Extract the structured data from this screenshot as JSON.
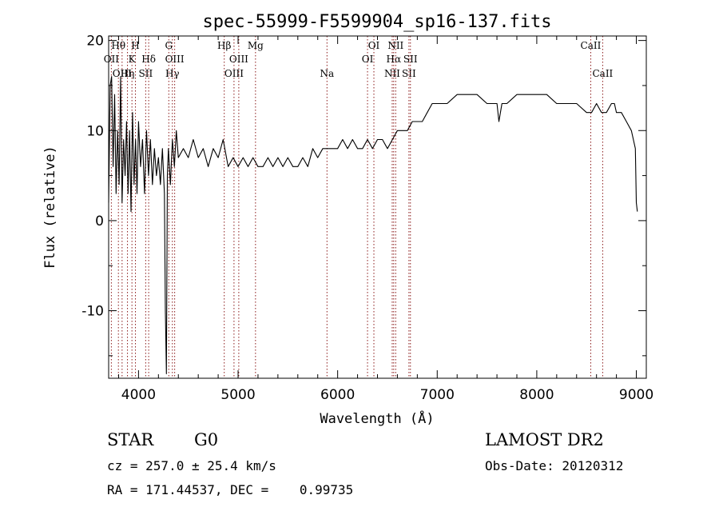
{
  "chart_data": {
    "type": "line",
    "title": "spec-55999-F5599904_sp16-137.fits",
    "xlabel": "Wavelength (Å)",
    "ylabel": "Flux (relative)",
    "xlim": [
      3700,
      9100
    ],
    "ylim": [
      -17.5,
      20.5
    ],
    "xticks": [
      4000,
      5000,
      6000,
      7000,
      8000,
      9000
    ],
    "yticks": [
      -10,
      0,
      10,
      20
    ],
    "grid": false,
    "legend": "none",
    "line_color": "#000000",
    "marker_color": "#8b1a1a",
    "series": [
      {
        "x": [
          3700,
          3715,
          3730,
          3745,
          3760,
          3775,
          3790,
          3805,
          3820,
          3835,
          3850,
          3865,
          3880,
          3895,
          3910,
          3925,
          3940,
          3955,
          3970,
          3985,
          4000,
          4020,
          4040,
          4060,
          4080,
          4100,
          4120,
          4140,
          4160,
          4180,
          4200,
          4220,
          4240,
          4260,
          4270,
          4280,
          4290,
          4300,
          4320,
          4340,
          4360,
          4380,
          4400,
          4450,
          4500,
          4550,
          4600,
          4650,
          4700,
          4750,
          4800,
          4850,
          4900,
          4950,
          5000,
          5050,
          5100,
          5150,
          5200,
          5250,
          5300,
          5350,
          5400,
          5450,
          5500,
          5550,
          5600,
          5650,
          5700,
          5750,
          5800,
          5850,
          5900,
          5950,
          6000,
          6050,
          6100,
          6150,
          6200,
          6250,
          6300,
          6350,
          6400,
          6450,
          6500,
          6550,
          6600,
          6650,
          6700,
          6750,
          6800,
          6850,
          6900,
          6950,
          7000,
          7100,
          7200,
          7300,
          7400,
          7500,
          7550,
          7600,
          7620,
          7650,
          7700,
          7800,
          7900,
          8000,
          8100,
          8200,
          8300,
          8400,
          8500,
          8550,
          8600,
          8650,
          8700,
          8750,
          8780,
          8800,
          8850,
          8900,
          8950,
          8990,
          9000,
          9010
        ],
        "y": [
          2,
          15,
          16,
          6,
          14,
          3,
          10,
          4,
          16,
          2,
          9,
          5,
          11,
          3,
          10,
          1,
          12,
          4,
          9,
          3,
          11,
          6,
          9,
          3,
          10,
          5,
          9,
          4,
          8,
          5,
          7,
          4,
          8,
          3,
          -10,
          -17,
          5,
          8,
          4,
          9,
          6,
          10,
          7,
          8,
          7,
          9,
          7,
          8,
          6,
          8,
          7,
          9,
          6,
          7,
          6,
          7,
          6,
          7,
          6,
          6,
          7,
          6,
          7,
          6,
          7,
          6,
          6,
          7,
          6,
          8,
          7,
          8,
          8,
          8,
          8,
          9,
          8,
          9,
          8,
          8,
          9,
          8,
          9,
          9,
          8,
          9,
          10,
          10,
          10,
          11,
          11,
          11,
          12,
          13,
          13,
          13,
          14,
          14,
          14,
          13,
          13,
          13,
          11,
          13,
          13,
          14,
          14,
          14,
          14,
          13,
          13,
          13,
          12,
          12,
          13,
          12,
          12,
          13,
          13,
          12,
          12,
          11,
          10,
          8,
          2,
          1
        ]
      }
    ],
    "line_markers": [
      {
        "wavelength": 3727,
        "labels": [
          "OII"
        ],
        "levels": [
          2
        ]
      },
      {
        "wavelength": 3798,
        "labels": [
          "Hθ"
        ],
        "levels": [
          1
        ]
      },
      {
        "wavelength": 3835,
        "labels": [
          "OIII"
        ],
        "levels": [
          3
        ]
      },
      {
        "wavelength": 3889,
        "labels": [
          "Hη"
        ],
        "levels": [
          3
        ]
      },
      {
        "wavelength": 3934,
        "labels": [
          "K"
        ],
        "levels": [
          2
        ]
      },
      {
        "wavelength": 3969,
        "labels": [
          "H"
        ],
        "levels": [
          1
        ]
      },
      {
        "wavelength": 4072,
        "labels": [
          "SII"
        ],
        "levels": [
          3
        ]
      },
      {
        "wavelength": 4102,
        "labels": [
          "Hδ"
        ],
        "levels": [
          2
        ]
      },
      {
        "wavelength": 4304,
        "labels": [
          "G"
        ],
        "levels": [
          1
        ]
      },
      {
        "wavelength": 4340,
        "labels": [
          "Hγ"
        ],
        "levels": [
          3
        ]
      },
      {
        "wavelength": 4363,
        "labels": [
          "OIII"
        ],
        "levels": [
          2
        ]
      },
      {
        "wavelength": 4861,
        "labels": [
          "Hβ"
        ],
        "levels": [
          1
        ]
      },
      {
        "wavelength": 4959,
        "labels": [
          "OIII"
        ],
        "levels": [
          3
        ]
      },
      {
        "wavelength": 5007,
        "labels": [
          "OIII"
        ],
        "levels": [
          2
        ]
      },
      {
        "wavelength": 5175,
        "labels": [
          "Mg"
        ],
        "levels": [
          1
        ]
      },
      {
        "wavelength": 5893,
        "labels": [
          "Na"
        ],
        "levels": [
          3
        ]
      },
      {
        "wavelength": 6300,
        "labels": [
          "OI"
        ],
        "levels": [
          2
        ]
      },
      {
        "wavelength": 6364,
        "labels": [
          "OI"
        ],
        "levels": [
          1
        ]
      },
      {
        "wavelength": 6548,
        "labels": [
          "NII"
        ],
        "levels": [
          3
        ]
      },
      {
        "wavelength": 6563,
        "labels": [
          "Hα"
        ],
        "levels": [
          2
        ]
      },
      {
        "wavelength": 6583,
        "labels": [
          "NII"
        ],
        "levels": [
          1
        ]
      },
      {
        "wavelength": 6716,
        "labels": [
          "SII"
        ],
        "levels": [
          3
        ]
      },
      {
        "wavelength": 6731,
        "labels": [
          "SII"
        ],
        "levels": [
          2
        ]
      },
      {
        "wavelength": 8542,
        "labels": [
          "CaII"
        ],
        "levels": [
          1
        ]
      },
      {
        "wavelength": 8662,
        "labels": [
          "CaII"
        ],
        "levels": [
          3
        ]
      }
    ]
  },
  "info": {
    "class": "STAR",
    "subclass": "G0",
    "redshift": "cz = 257.0 ± 25.4 km/s",
    "coords": "RA = 171.44537, DEC =    0.99735",
    "survey": "LAMOST DR2",
    "obs_date": "Obs-Date: 20120312"
  }
}
